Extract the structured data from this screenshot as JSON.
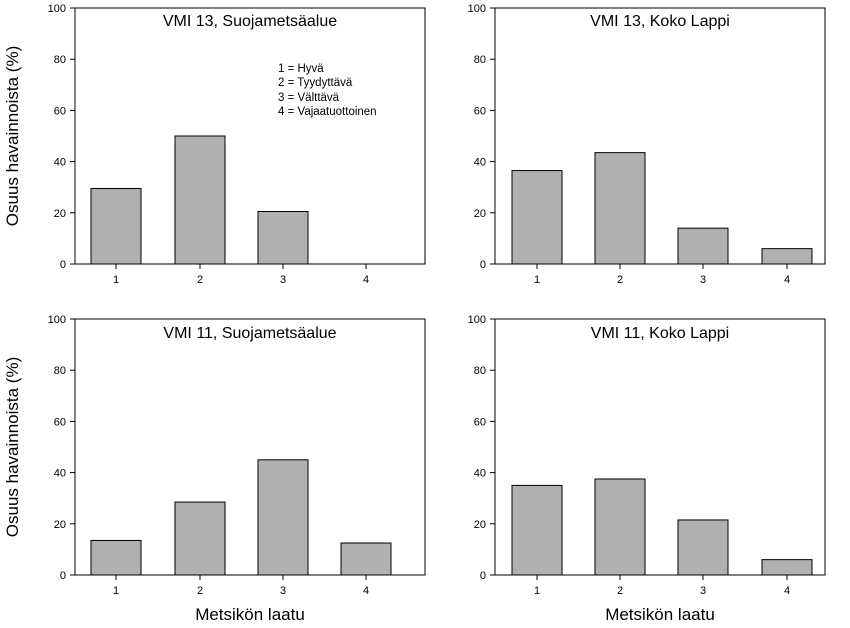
{
  "shared": {
    "ylabel": "Osuus havainnoista (%)",
    "xlabel": "Metsikön laatu",
    "legend": [
      "1 = Hyvä",
      "2 = Tyydyttävä",
      "3 = Välttävä",
      "4 = Vajaatuottoinen"
    ]
  },
  "colors": {
    "bar_fill": "#b0b0b0",
    "bar_stroke": "#000000",
    "axis": "#000000"
  },
  "chart_data": [
    {
      "type": "bar",
      "title": "VMI 13, Suojametsäalue",
      "categories": [
        "1",
        "2",
        "3",
        "4"
      ],
      "values": [
        29.5,
        50.0,
        20.5,
        0
      ],
      "ylim": [
        0,
        100
      ],
      "yticks": [
        0,
        20,
        40,
        60,
        80,
        100
      ],
      "ylabel": "Osuus havainnoista (%)",
      "xlabel": "",
      "legend": "top-right"
    },
    {
      "type": "bar",
      "title": "VMI 13, Koko Lappi",
      "categories": [
        "1",
        "2",
        "3",
        "4"
      ],
      "values": [
        36.5,
        43.5,
        14.0,
        6.0
      ],
      "ylim": [
        0,
        100
      ],
      "yticks": [
        0,
        20,
        40,
        60,
        80,
        100
      ],
      "ylabel": "",
      "xlabel": ""
    },
    {
      "type": "bar",
      "title": "VMI 11, Suojametsäalue",
      "categories": [
        "1",
        "2",
        "3",
        "4"
      ],
      "values": [
        13.5,
        28.5,
        45.0,
        12.5
      ],
      "ylim": [
        0,
        100
      ],
      "yticks": [
        0,
        20,
        40,
        60,
        80,
        100
      ],
      "ylabel": "Osuus havainnoista (%)",
      "xlabel": "Metsikön laatu"
    },
    {
      "type": "bar",
      "title": "VMI 11, Koko Lappi",
      "categories": [
        "1",
        "2",
        "3",
        "4"
      ],
      "values": [
        35.0,
        37.5,
        21.5,
        6.0
      ],
      "ylim": [
        0,
        100
      ],
      "yticks": [
        0,
        20,
        40,
        60,
        80,
        100
      ],
      "ylabel": "",
      "xlabel": "Metsikön laatu"
    }
  ]
}
